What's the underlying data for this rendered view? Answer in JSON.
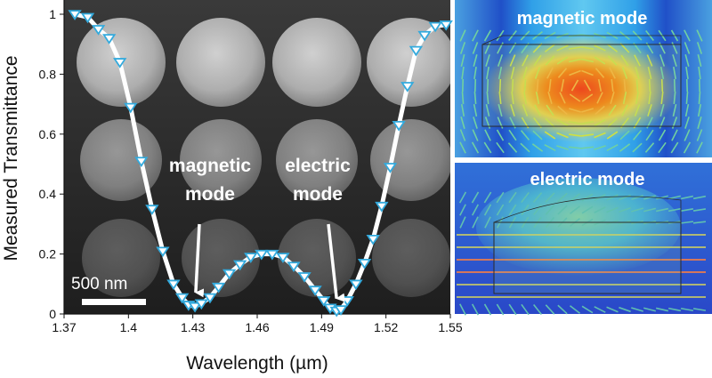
{
  "chart_data": {
    "type": "line",
    "title": "",
    "xlabel": "Wavelength (µm)",
    "ylabel": "Measured Transmittance",
    "xlim": [
      1.37,
      1.55
    ],
    "ylim": [
      0,
      1
    ],
    "xticks": [
      "1.37",
      "1.4",
      "1.43",
      "1.46",
      "1.49",
      "1.52",
      "1.55"
    ],
    "yticks": [
      "0",
      "0.2",
      "0.4",
      "0.6",
      "0.8",
      "1"
    ],
    "grid": false,
    "series": [
      {
        "line_color": "#ffffff",
        "marker": "triangle-down",
        "marker_color": "#33aadd",
        "x": [
          1.375,
          1.381,
          1.386,
          1.391,
          1.396,
          1.401,
          1.406,
          1.411,
          1.416,
          1.421,
          1.425,
          1.428,
          1.431,
          1.434,
          1.438,
          1.442,
          1.447,
          1.452,
          1.457,
          1.462,
          1.467,
          1.472,
          1.477,
          1.482,
          1.487,
          1.491,
          1.494,
          1.497,
          1.499,
          1.502,
          1.506,
          1.51,
          1.514,
          1.518,
          1.522,
          1.526,
          1.53,
          1.534,
          1.538,
          1.543,
          1.548
        ],
        "y": [
          1.0,
          0.99,
          0.95,
          0.92,
          0.84,
          0.69,
          0.51,
          0.35,
          0.21,
          0.1,
          0.055,
          0.03,
          0.025,
          0.035,
          0.055,
          0.09,
          0.135,
          0.165,
          0.19,
          0.2,
          0.2,
          0.19,
          0.16,
          0.125,
          0.08,
          0.045,
          0.02,
          0.01,
          0.015,
          0.045,
          0.1,
          0.17,
          0.25,
          0.36,
          0.49,
          0.63,
          0.76,
          0.88,
          0.93,
          0.96,
          0.965
        ]
      }
    ],
    "annotations": [
      {
        "text_line1": "magnetic",
        "text_line2": "mode",
        "arrow_to": [
          1.433,
          0.03
        ]
      },
      {
        "text_line1": "electric",
        "text_line2": "mode",
        "arrow_to": [
          1.497,
          0.01
        ]
      }
    ],
    "scale_bar": {
      "label": "500 nm"
    },
    "insets": [
      {
        "title": "magnetic mode"
      },
      {
        "title": "electric mode"
      }
    ],
    "colors": {
      "sem_background": "#2a2a2a",
      "particle": "#bdbdbd",
      "curve": "#ffffff",
      "marker": "#33aadd"
    }
  }
}
